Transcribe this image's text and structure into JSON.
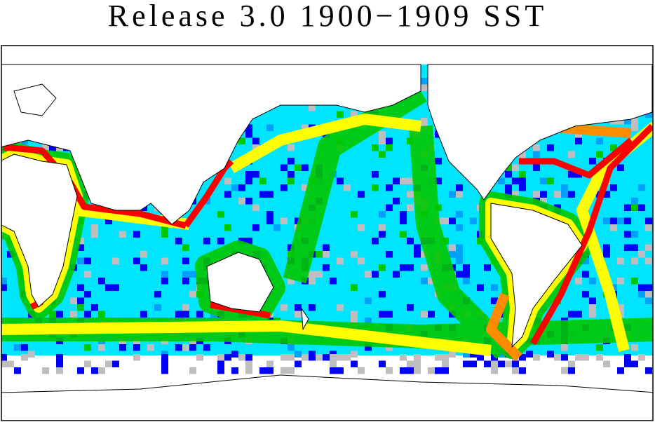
{
  "title": "Release 3.0 1900−1909 SST"
}
